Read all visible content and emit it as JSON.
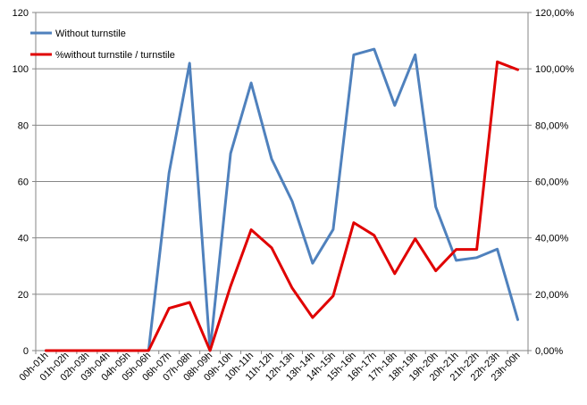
{
  "chart_data": {
    "type": "line",
    "categories": [
      "00h-01h",
      "01h-02h",
      "02h-03h",
      "03h-04h",
      "04h-05h",
      "05h-06h",
      "06h-07h",
      "07h-08h",
      "08h-09h",
      "09h-10h",
      "10h-11h",
      "11h-12h",
      "12h-13h",
      "13h-14h",
      "14h-15h",
      "15h-16h",
      "16h-17h",
      "17h-18h",
      "18h-19h",
      "19h-20h",
      "20h-21h",
      "21h-22h",
      "22h-23h",
      "23h-00h"
    ],
    "series": [
      {
        "name": "Without turnstile",
        "axis": "left",
        "color": "#4F81BD",
        "values": [
          0,
          0,
          0,
          0,
          0,
          0,
          63,
          102,
          0,
          70,
          95,
          68,
          53,
          31,
          43,
          105,
          107,
          87,
          105,
          51,
          32,
          33,
          36,
          11
        ]
      },
      {
        "name": "%without turnstile / turnstile",
        "axis": "right",
        "color": "#E00000",
        "values": [
          0,
          0,
          0,
          0,
          0,
          0,
          15.0,
          17.1,
          0,
          22.9,
          42.9,
          36.5,
          22.2,
          11.7,
          19.4,
          45.4,
          40.9,
          27.3,
          39.7,
          28.3,
          35.9,
          35.9,
          102.5,
          99.7
        ]
      }
    ],
    "y_left": {
      "min": 0,
      "max": 120,
      "ticks": [
        "0",
        "20",
        "40",
        "60",
        "80",
        "100",
        "120"
      ]
    },
    "y_right": {
      "min": 0,
      "max": 120,
      "ticks": [
        "0,00%",
        "20,00%",
        "40,00%",
        "60,00%",
        "80,00%",
        "100,00%",
        "120,00%"
      ]
    },
    "grid": true,
    "legend_position": "top-left"
  }
}
